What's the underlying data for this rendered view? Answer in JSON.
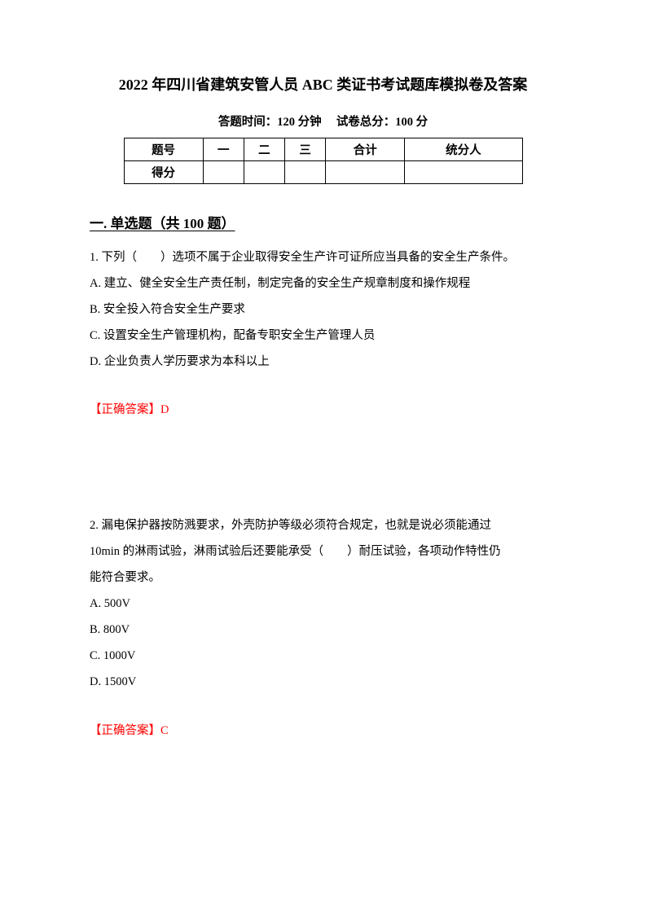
{
  "title": "2022 年四川省建筑安管人员 ABC 类证书考试题库模拟卷及答案",
  "subtitle_time_label": "答题时间：120 分钟",
  "subtitle_score_label": "试卷总分：100 分",
  "score_table": {
    "headers": [
      "题号",
      "一",
      "二",
      "三",
      "合计",
      "统分人"
    ],
    "row_label": "得分"
  },
  "section1_title": "一. 单选题（共 100 题）",
  "q1": {
    "stem": "1. 下列（　　）选项不属于企业取得安全生产许可证所应当具备的安全生产条件。",
    "a": "A. 建立、健全安全生产责任制，制定完备的安全生产规章制度和操作规程",
    "b": "B. 安全投入符合安全生产要求",
    "c": "C. 设置安全生产管理机构，配备专职安全生产管理人员",
    "d": "D. 企业负责人学历要求为本科以上",
    "answer_label": "【正确答案】D"
  },
  "q2": {
    "stem1": "2. 漏电保护器按防溅要求，外壳防护等级必须符合规定，也就是说必须能通过",
    "stem2": "10min 的淋雨试验，淋雨试验后还要能承受（　　）耐压试验，各项动作特性仍",
    "stem3": "能符合要求。",
    "a": "A. 500V",
    "b": "B. 800V",
    "c": "C. 1000V",
    "d": "D. 1500V",
    "answer_label": "【正确答案】C"
  },
  "colors": {
    "text": "#000000",
    "answer": "#ff0000",
    "background": "#ffffff",
    "table_border": "#000000"
  },
  "typography": {
    "title_fontsize": 18,
    "subtitle_fontsize": 14.5,
    "section_fontsize": 17,
    "body_fontsize": 14.5,
    "line_height": 2.2
  }
}
